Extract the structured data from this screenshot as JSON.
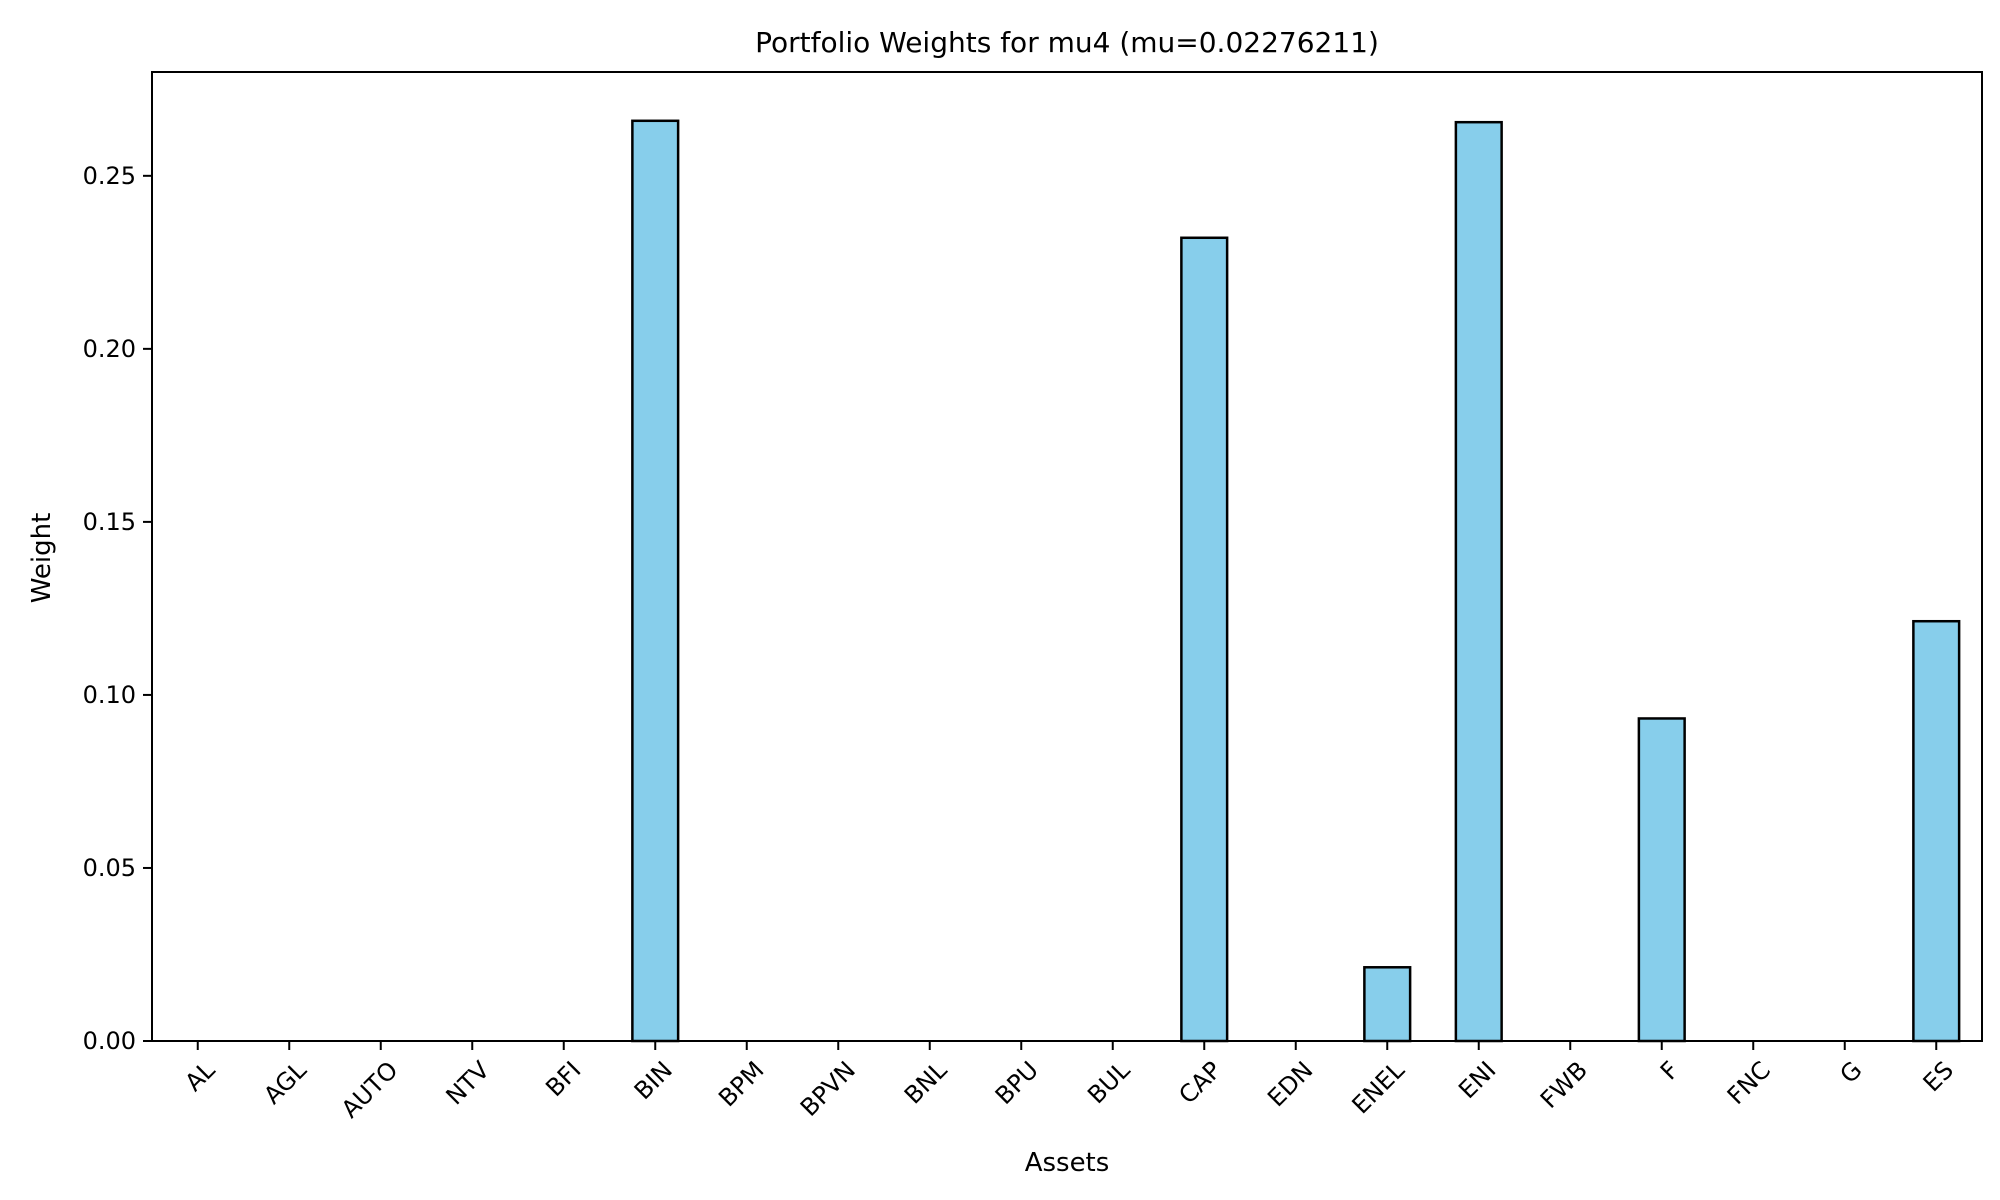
{
  "chart_data": {
    "type": "bar",
    "title": "Portfolio Weights for mu4 (mu=0.02276211)",
    "xlabel": "Assets",
    "ylabel": "Weight",
    "categories": [
      "AL",
      "AGL",
      "AUTO",
      "NTV",
      "BFI",
      "BIN",
      "BPM",
      "BPVN",
      "BNL",
      "BPU",
      "BUL",
      "CAP",
      "EDN",
      "ENEL",
      "ENI",
      "FWB",
      "F",
      "FNC",
      "G",
      "ES"
    ],
    "values": [
      0,
      0,
      0,
      0,
      0,
      0.2659,
      0,
      0,
      0,
      0,
      0,
      0.2321,
      0,
      0.0213,
      0.2655,
      0,
      0.0932,
      0,
      0,
      0.1213
    ],
    "ylim": [
      0,
      0.28
    ],
    "yticks": [
      "0.00",
      "0.05",
      "0.10",
      "0.15",
      "0.20",
      "0.25"
    ],
    "grid": false,
    "bar_color": "#87CEEB",
    "edge_color": "#000000"
  }
}
